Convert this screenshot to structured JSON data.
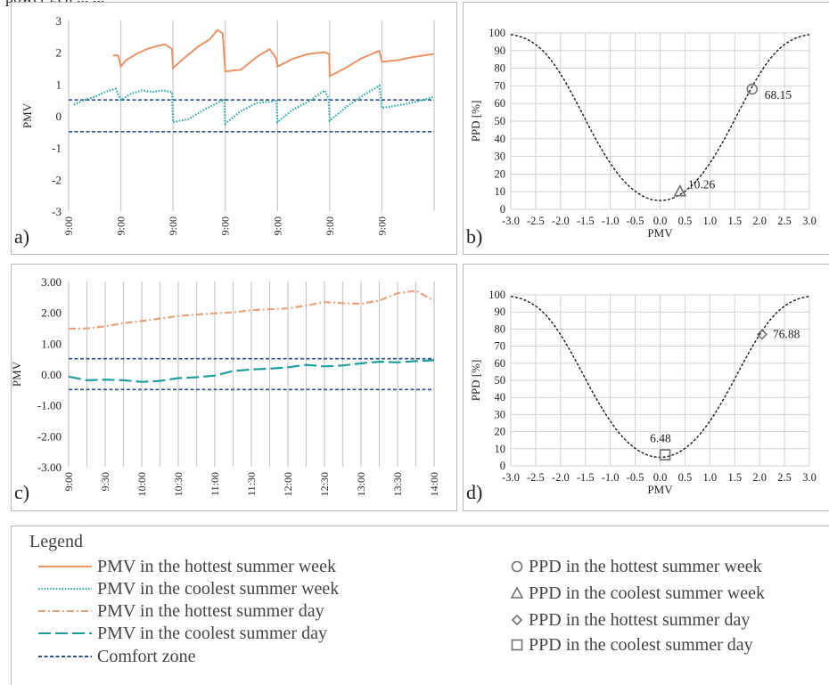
{
  "header_text": "power gen ... ...",
  "chart_data": [
    {
      "id": "a",
      "panel_label": "a)",
      "type": "line",
      "ylabel": "PMV",
      "ylim": [
        -3,
        3
      ],
      "yticks": [
        "3",
        "2",
        "1",
        "0",
        "-1",
        "-2",
        "-3"
      ],
      "xticks": [
        "9:00",
        "9:00",
        "9:00",
        "9:00",
        "9:00",
        "9:00",
        "9:00"
      ],
      "grid": "vertical",
      "series": [
        {
          "name": "PMV in the hottest summer week",
          "style": "solid",
          "color": "#E8956A",
          "x": [
            0.85,
            0.95,
            1.0,
            1.1,
            1.3,
            1.5,
            1.7,
            1.85,
            1.98,
            2.0,
            2.2,
            2.5,
            2.7,
            2.85,
            2.95,
            3.0,
            3.3,
            3.6,
            3.85,
            3.98,
            4.0,
            4.3,
            4.6,
            4.9,
            4.99,
            5.0,
            5.3,
            5.6,
            5.95,
            6.0,
            6.3,
            6.6,
            7.0
          ],
          "values": [
            1.9,
            1.9,
            1.55,
            1.75,
            1.95,
            2.1,
            2.2,
            2.25,
            2.1,
            1.5,
            1.8,
            2.2,
            2.4,
            2.7,
            2.6,
            1.4,
            1.45,
            1.85,
            2.1,
            1.8,
            1.55,
            1.8,
            1.95,
            2.0,
            1.95,
            1.25,
            1.5,
            1.8,
            2.05,
            1.7,
            1.75,
            1.85,
            1.95
          ]
        },
        {
          "name": "PMV in the coolest summer week",
          "style": "dotted",
          "color": "#2BA9A7",
          "x": [
            0.1,
            0.3,
            0.5,
            0.7,
            0.9,
            1.0,
            1.2,
            1.4,
            1.6,
            1.8,
            1.98,
            2.0,
            2.3,
            2.6,
            2.9,
            2.98,
            3.0,
            3.3,
            3.6,
            3.9,
            3.98,
            4.0,
            4.3,
            4.6,
            4.9,
            4.98,
            5.0,
            5.3,
            5.6,
            5.95,
            6.0,
            6.4,
            6.8,
            7.0
          ],
          "values": [
            0.35,
            0.5,
            0.6,
            0.75,
            0.85,
            0.5,
            0.7,
            0.8,
            0.75,
            0.8,
            0.75,
            -0.2,
            -0.1,
            0.2,
            0.45,
            0.5,
            -0.25,
            0.15,
            0.4,
            0.45,
            0.5,
            -0.2,
            0.2,
            0.45,
            0.8,
            0.55,
            -0.15,
            0.25,
            0.6,
            0.95,
            0.25,
            0.35,
            0.5,
            0.6
          ]
        }
      ],
      "comfort_zone": [
        -0.5,
        0.5
      ]
    },
    {
      "id": "b",
      "panel_label": "b)",
      "type": "line",
      "xlabel": "PMV",
      "ylabel": "PPD  [%]",
      "xlim": [
        -3,
        3
      ],
      "ylim": [
        0,
        100
      ],
      "xticks": [
        "-3.0",
        "-2.5",
        "-2.0",
        "-1.5",
        "-1.0",
        "-0.5",
        "0.0",
        "0.5",
        "1.0",
        "1.5",
        "2.0",
        "2.5",
        "3.0"
      ],
      "yticks": [
        "0",
        "10",
        "20",
        "30",
        "40",
        "50",
        "60",
        "70",
        "80",
        "90",
        "100"
      ],
      "grid": "both",
      "markers": [
        {
          "name": "PPD in the hottest summer week",
          "shape": "circle",
          "pmv": 1.85,
          "ppd": 68.15,
          "label": "68.15"
        },
        {
          "name": "PPD in the coolest summer week",
          "shape": "triangle",
          "pmv": 0.4,
          "ppd": 10.26,
          "label": "10.26"
        }
      ]
    },
    {
      "id": "c",
      "panel_label": "c)",
      "type": "line",
      "ylabel": "PMV",
      "ylim": [
        -3,
        3
      ],
      "yticks": [
        "3.00",
        "2.00",
        "1.00",
        "0.00",
        "-1.00",
        "-2.00",
        "-3.00"
      ],
      "xticks": [
        "9:00",
        "9:30",
        "10:00",
        "10:30",
        "11:00",
        "11:30",
        "12:00",
        "12:30",
        "13:00",
        "13:30",
        "14:00"
      ],
      "grid": "vertical",
      "series": [
        {
          "name": "PMV in the hottest summer day",
          "style": "dashdot",
          "color": "#E8A27E",
          "x": [
            0,
            0.5,
            1,
            1.5,
            2,
            2.5,
            3,
            3.5,
            4,
            4.5,
            5,
            5.5,
            6,
            6.5,
            7,
            7.5,
            8,
            8.5,
            9,
            9.5,
            10
          ],
          "values": [
            1.47,
            1.48,
            1.55,
            1.65,
            1.72,
            1.8,
            1.88,
            1.93,
            1.97,
            2.0,
            2.07,
            2.1,
            2.13,
            2.22,
            2.33,
            2.3,
            2.28,
            2.38,
            2.62,
            2.7,
            2.38
          ]
        },
        {
          "name": "PMV in the coolest summer day",
          "style": "longdash",
          "color": "#1E9E9C",
          "x": [
            0,
            0.5,
            1,
            1.5,
            2,
            2.5,
            3,
            3.5,
            4,
            4.5,
            5,
            5.5,
            6,
            6.5,
            7,
            7.5,
            8,
            8.5,
            9,
            9.5,
            10
          ],
          "values": [
            -0.08,
            -0.2,
            -0.18,
            -0.2,
            -0.25,
            -0.22,
            -0.13,
            -0.1,
            -0.05,
            0.1,
            0.15,
            0.18,
            0.22,
            0.3,
            0.25,
            0.28,
            0.35,
            0.4,
            0.38,
            0.42,
            0.45
          ]
        }
      ],
      "comfort_zone": [
        -0.5,
        0.5
      ]
    },
    {
      "id": "d",
      "panel_label": "d)",
      "type": "line",
      "xlabel": "PMV",
      "ylabel": "PPD  [%]",
      "xlim": [
        -3,
        3
      ],
      "ylim": [
        0,
        100
      ],
      "xticks": [
        "-3.0",
        "-2.5",
        "-2.0",
        "-1.5",
        "-1.0",
        "-0.5",
        "0.0",
        "0.5",
        "1.0",
        "1.5",
        "2.0",
        "2.5",
        "3.0"
      ],
      "yticks": [
        "0",
        "10",
        "20",
        "30",
        "40",
        "50",
        "60",
        "70",
        "80",
        "90",
        "100"
      ],
      "grid": "both",
      "markers": [
        {
          "name": "PPD in the hottest summer day",
          "shape": "diamond",
          "pmv": 2.05,
          "ppd": 76.88,
          "label": "76.88"
        },
        {
          "name": "PPD in the coolest summer day",
          "shape": "square",
          "pmv": 0.1,
          "ppd": 6.48,
          "label": "6.48"
        }
      ]
    }
  ],
  "legend": {
    "title": "Legend",
    "items": [
      {
        "label": "PMV in the hottest summer week",
        "symbol": "solid",
        "color": "#E8956A"
      },
      {
        "label": "PMV in the coolest summer week",
        "symbol": "dotted",
        "color": "#2BA9A7"
      },
      {
        "label": "PMV in the hottest summer day",
        "symbol": "dashdot",
        "color": "#E8A27E"
      },
      {
        "label": "PMV in the coolest summer day",
        "symbol": "longdash",
        "color": "#1E9E9C"
      },
      {
        "label": "Comfort zone",
        "symbol": "dashed",
        "color": "#2D4F86"
      },
      {
        "label": "PPD in the hottest summer week",
        "symbol": "circle",
        "color": "#707070"
      },
      {
        "label": "PPD in the coolest summer week",
        "symbol": "triangle",
        "color": "#707070"
      },
      {
        "label": "PPD in the hottest summer day",
        "symbol": "diamond",
        "color": "#707070"
      },
      {
        "label": "PPD in the coolest summer day",
        "symbol": "square",
        "color": "#707070"
      }
    ]
  }
}
